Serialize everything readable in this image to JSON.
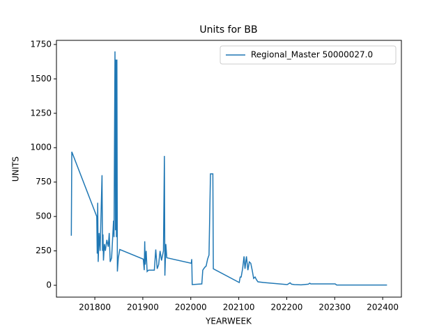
{
  "chart_data": {
    "type": "line",
    "title": "Units for BB",
    "x_label": "YEARWEEK",
    "y_label": "UNITS",
    "x": [
      201751,
      201752,
      201804,
      201805,
      201806,
      201807,
      201809,
      201811,
      201815,
      201816,
      201817,
      201818,
      201820,
      201822,
      201825,
      201828,
      201830,
      201832,
      201835,
      201839,
      201840,
      201842,
      201843,
      201844,
      201845,
      201846,
      201847,
      201849,
      201852,
      201901,
      201903,
      201904,
      201905,
      201907,
      201909,
      201912,
      201924,
      201927,
      201930,
      201933,
      201936,
      201939,
      201943,
      201945,
      201946,
      201948,
      201950,
      202001,
      202002,
      202003,
      202023,
      202025,
      202029,
      202032,
      202035,
      202038,
      202041,
      202046,
      202047,
      202101,
      202103,
      202105,
      202108,
      202111,
      202113,
      202116,
      202119,
      202122,
      202125,
      202128,
      202131,
      202134,
      202137,
      202140,
      202152,
      202201,
      202207,
      202210,
      202216,
      202230,
      202245,
      202248,
      202250,
      202301,
      202304,
      202401,
      202409
    ],
    "series": [
      {
        "name": "Regional_Master 50000027.0",
        "color": "#1f77b4",
        "values": [
          360,
          970,
          500,
          230,
          600,
          170,
          380,
          250,
          800,
          250,
          370,
          180,
          300,
          250,
          330,
          280,
          380,
          170,
          200,
          470,
          350,
          1700,
          400,
          1640,
          350,
          1640,
          100,
          200,
          260,
          190,
          110,
          320,
          150,
          250,
          100,
          110,
          110,
          260,
          120,
          150,
          250,
          180,
          250,
          940,
          70,
          300,
          200,
          160,
          190,
          5,
          10,
          110,
          130,
          140,
          190,
          220,
          810,
          810,
          120,
          20,
          60,
          60,
          120,
          210,
          120,
          210,
          110,
          170,
          160,
          110,
          50,
          60,
          40,
          25,
          20,
          5,
          18,
          8,
          5,
          3,
          8,
          15,
          10,
          10,
          2,
          2,
          2
        ]
      }
    ],
    "xlim": [
      201720,
      202439
    ],
    "xticks": [
      201800,
      201900,
      202000,
      202100,
      202200,
      202300,
      202400
    ],
    "ylim": [
      -86,
      1780
    ],
    "yticks": [
      0,
      250,
      500,
      750,
      1000,
      1250,
      1500,
      1750
    ],
    "legend": "upper right"
  }
}
